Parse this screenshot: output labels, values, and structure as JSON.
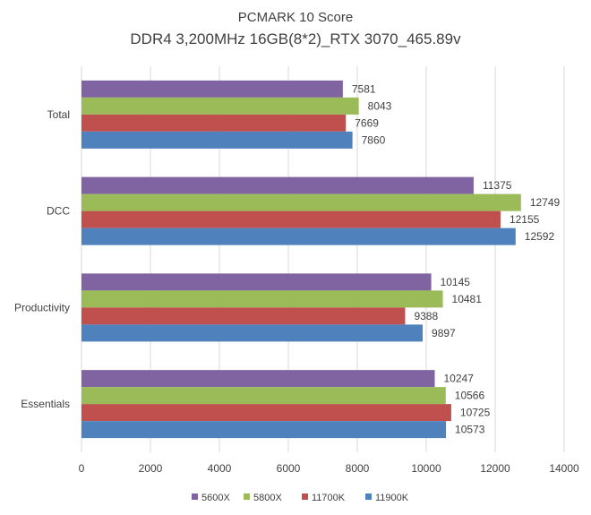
{
  "chart_data": {
    "type": "bar",
    "orientation": "horizontal",
    "title": "PCMARK 10 Score",
    "subtitle": "DDR4 3,200MHz 16GB(8*2)_RTX 3070_465.89v",
    "categories": [
      "Total",
      "DCC",
      "Productivity",
      "Essentials"
    ],
    "series": [
      {
        "name": "5600X",
        "color": "#8064a2",
        "values": [
          7581,
          11375,
          10145,
          10247
        ]
      },
      {
        "name": "5800X",
        "color": "#9bbb59",
        "values": [
          8043,
          12749,
          10481,
          10566
        ]
      },
      {
        "name": "11700K",
        "color": "#c0504d",
        "values": [
          7669,
          12155,
          9388,
          10725
        ]
      },
      {
        "name": "11900K",
        "color": "#4f81bd",
        "values": [
          7860,
          12592,
          9897,
          10573
        ]
      }
    ],
    "xlim": [
      0,
      14000
    ],
    "xticks": [
      "0",
      "2000",
      "4000",
      "6000",
      "8000",
      "10000",
      "12000",
      "14000"
    ],
    "grid": "vertical",
    "legend_position": "bottom"
  }
}
